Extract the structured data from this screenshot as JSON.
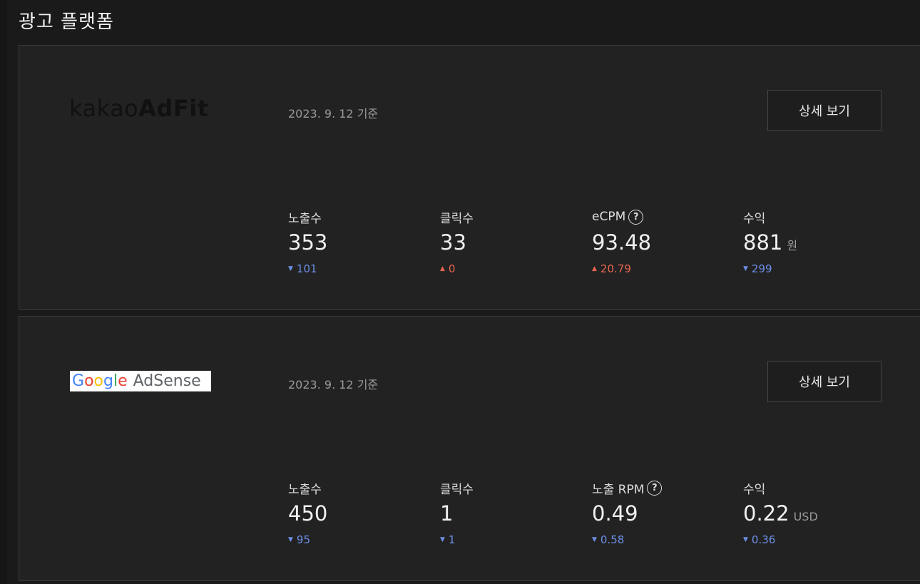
{
  "page": {
    "title": "광고 플랫폼"
  },
  "platforms": [
    {
      "logo_prefix": "kakao",
      "logo_suffix": "AdFit",
      "date": "2023. 9. 12 기준",
      "detail_label": "상세 보기",
      "metrics": [
        {
          "label": "노출수",
          "value": "353",
          "delta": "101",
          "direction": "down"
        },
        {
          "label": "클릭수",
          "value": "33",
          "delta": "0",
          "direction": "up"
        },
        {
          "label": "eCPM",
          "help": "?",
          "value": "93.48",
          "delta": "20.79",
          "direction": "up"
        },
        {
          "label": "수익",
          "value": "881",
          "unit": "원",
          "delta": "299",
          "direction": "down"
        }
      ]
    },
    {
      "logo_letters": [
        "G",
        "o",
        "o",
        "g",
        "l",
        "e"
      ],
      "logo_suffix": "AdSense",
      "date": "2023. 9. 12 기준",
      "detail_label": "상세 보기",
      "metrics": [
        {
          "label": "노출수",
          "value": "450",
          "delta": "95",
          "direction": "down"
        },
        {
          "label": "클릭수",
          "value": "1",
          "delta": "1",
          "direction": "down"
        },
        {
          "label": "노출 RPM",
          "help": "?",
          "value": "0.49",
          "delta": "0.58",
          "direction": "down"
        },
        {
          "label": "수익",
          "value": "0.22",
          "unit": "USD",
          "delta": "0.36",
          "direction": "down"
        }
      ]
    }
  ],
  "colors": {
    "down": "#6c8fe6",
    "up": "#e8664f",
    "background": "#1a1a1a",
    "card": "#222222"
  },
  "icons": {
    "down": "triangle-down-icon",
    "up": "triangle-up-icon",
    "help": "question-circle-icon"
  }
}
